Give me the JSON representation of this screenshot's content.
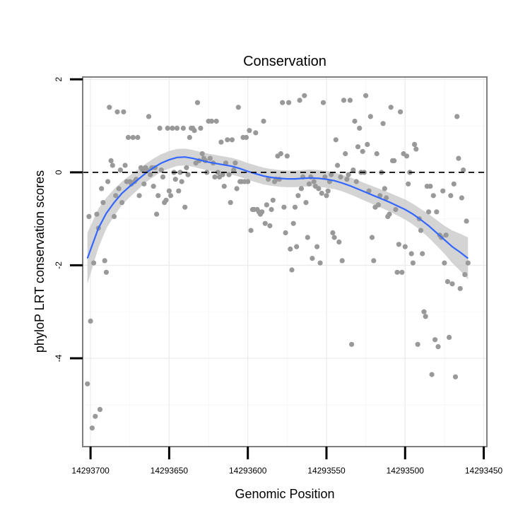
{
  "chart_data": {
    "type": "scatter",
    "title": "Conservation",
    "xlabel": "Genomic Position",
    "ylabel": "phyloP LRT conservation scores",
    "x_reversed": true,
    "xlim": [
      14293705,
      14293448
    ],
    "ylim": [
      -5.9,
      2.05
    ],
    "x_ticks": [
      14293700,
      14293650,
      14293600,
      14293550,
      14293500,
      14293450
    ],
    "x_tick_labels": [
      "14293700",
      "14293650",
      "14293600",
      "14293550",
      "14293500",
      "14293450"
    ],
    "y_ticks": [
      2,
      0,
      -2,
      -4
    ],
    "y_tick_labels": [
      "2",
      "0",
      "-2",
      "-4"
    ],
    "reference_line_y": 0,
    "grid": true,
    "colors": {
      "points": "#999999",
      "smooth": "#3366ff",
      "ribbon": "#cccccc",
      "panel_border": "#7f7f7f",
      "reference_line": "#000000"
    },
    "points": [
      [
        14293702,
        -4.55
      ],
      [
        14293701,
        -0.95
      ],
      [
        14293700,
        -3.2
      ],
      [
        14293699,
        -5.5
      ],
      [
        14293698,
        -1.95
      ],
      [
        14293697,
        -5.25
      ],
      [
        14293696,
        -0.9
      ],
      [
        14293695,
        -1.2
      ],
      [
        14293694,
        -5.1
      ],
      [
        14293693,
        -0.35
      ],
      [
        14293692,
        -0.65
      ],
      [
        14293691,
        -1.9
      ],
      [
        14293690,
        -2.15
      ],
      [
        14293689,
        -0.2
      ],
      [
        14293688,
        1.4
      ],
      [
        14293687,
        0.25
      ],
      [
        14293686,
        0.15
      ],
      [
        14293685,
        -0.95
      ],
      [
        14293684,
        -0.5
      ],
      [
        14293683,
        1.3
      ],
      [
        14293682,
        -0.35
      ],
      [
        14293681,
        0.05
      ],
      [
        14293680,
        -0.65
      ],
      [
        14293679,
        1.3
      ],
      [
        14293678,
        0.15
      ],
      [
        14293677,
        -0.2
      ],
      [
        14293676,
        0.75
      ],
      [
        14293675,
        -0.2
      ],
      [
        14293674,
        -0.25
      ],
      [
        14293673,
        0.75
      ],
      [
        14293672,
        -0.2
      ],
      [
        14293671,
        -0.15
      ],
      [
        14293670,
        0.75
      ],
      [
        14293669,
        -0.5
      ],
      [
        14293668,
        0.1
      ],
      [
        14293667,
        0.05
      ],
      [
        14293666,
        -0.25
      ],
      [
        14293665,
        0.1
      ],
      [
        14293664,
        0.05
      ],
      [
        14293663,
        1.2
      ],
      [
        14293662,
        -0.05
      ],
      [
        14293661,
        0.1
      ],
      [
        14293660,
        -0.3
      ],
      [
        14293659,
        0.1
      ],
      [
        14293658,
        -0.9
      ],
      [
        14293657,
        -0.5
      ],
      [
        14293656,
        0.95
      ],
      [
        14293655,
        0.05
      ],
      [
        14293654,
        -0.1
      ],
      [
        14293653,
        -0.65
      ],
      [
        14293652,
        -0.6
      ],
      [
        14293651,
        0.95
      ],
      [
        14293650,
        -0.4
      ],
      [
        14293649,
        -0.5
      ],
      [
        14293648,
        0.95
      ],
      [
        14293647,
        0.0
      ],
      [
        14293646,
        -0.15
      ],
      [
        14293645,
        0.95
      ],
      [
        14293644,
        -0.4
      ],
      [
        14293643,
        0.0
      ],
      [
        14293642,
        -0.2
      ],
      [
        14293641,
        0.95
      ],
      [
        14293640,
        -0.75
      ],
      [
        14293639,
        0.1
      ],
      [
        14293638,
        -0.05
      ],
      [
        14293637,
        0.75
      ],
      [
        14293636,
        0.95
      ],
      [
        14293635,
        0.95
      ],
      [
        14293634,
        0.9
      ],
      [
        14293633,
        0.2
      ],
      [
        14293632,
        1.5
      ],
      [
        14293631,
        0.25
      ],
      [
        14293630,
        0.95
      ],
      [
        14293629,
        0.4
      ],
      [
        14293628,
        0.3
      ],
      [
        14293627,
        0.25
      ],
      [
        14293626,
        0.0
      ],
      [
        14293625,
        1.1
      ],
      [
        14293624,
        0.3
      ],
      [
        14293623,
        1.1
      ],
      [
        14293622,
        0.2
      ],
      [
        14293621,
        -0.1
      ],
      [
        14293620,
        1.1
      ],
      [
        14293619,
        0.0
      ],
      [
        14293618,
        -0.1
      ],
      [
        14293617,
        0.65
      ],
      [
        14293616,
        -0.05
      ],
      [
        14293615,
        -0.3
      ],
      [
        14293614,
        0.2
      ],
      [
        14293613,
        0.7
      ],
      [
        14293612,
        -0.05
      ],
      [
        14293611,
        -0.65
      ],
      [
        14293610,
        0.7
      ],
      [
        14293609,
        0.05
      ],
      [
        14293608,
        0.2
      ],
      [
        14293607,
        -0.35
      ],
      [
        14293606,
        1.4
      ],
      [
        14293605,
        -0.2
      ],
      [
        14293604,
        -0.2
      ],
      [
        14293603,
        0.75
      ],
      [
        14293602,
        -0.2
      ],
      [
        14293601,
        0.75
      ],
      [
        14293600,
        -0.2
      ],
      [
        14293599,
        0.9
      ],
      [
        14293598,
        -1.25
      ],
      [
        14293597,
        -0.8
      ],
      [
        14293596,
        -0.8
      ],
      [
        14293595,
        0.85
      ],
      [
        14293594,
        -0.8
      ],
      [
        14293593,
        -0.85
      ],
      [
        14293592,
        -0.9
      ],
      [
        14293591,
        -0.85
      ],
      [
        14293590,
        1.1
      ],
      [
        14293589,
        -1.1
      ],
      [
        14293588,
        -0.7
      ],
      [
        14293587,
        -0.15
      ],
      [
        14293586,
        -1.15
      ],
      [
        14293585,
        -0.8
      ],
      [
        14293584,
        -0.6
      ],
      [
        14293583,
        -0.2
      ],
      [
        14293582,
        -0.15
      ],
      [
        14293581,
        0.35
      ],
      [
        14293580,
        -0.15
      ],
      [
        14293579,
        0.4
      ],
      [
        14293578,
        1.5
      ],
      [
        14293577,
        -0.75
      ],
      [
        14293576,
        -1.3
      ],
      [
        14293575,
        0.35
      ],
      [
        14293574,
        1.5
      ],
      [
        14293573,
        -1.65
      ],
      [
        14293572,
        -2.1
      ],
      [
        14293571,
        -1.1
      ],
      [
        14293570,
        -0.75
      ],
      [
        14293569,
        -1.6
      ],
      [
        14293568,
        -0.5
      ],
      [
        14293567,
        1.55
      ],
      [
        14293566,
        -0.35
      ],
      [
        14293565,
        -0.1
      ],
      [
        14293564,
        1.65
      ],
      [
        14293563,
        -0.65
      ],
      [
        14293562,
        -1.4
      ],
      [
        14293561,
        -0.25
      ],
      [
        14293560,
        -0.1
      ],
      [
        14293559,
        -1.85
      ],
      [
        14293558,
        -0.2
      ],
      [
        14293557,
        -0.3
      ],
      [
        14293556,
        -1.6
      ],
      [
        14293555,
        -0.35
      ],
      [
        14293554,
        -1.95
      ],
      [
        14293553,
        -0.45
      ],
      [
        14293552,
        1.5
      ],
      [
        14293551,
        -0.1
      ],
      [
        14293550,
        -0.5
      ],
      [
        14293549,
        -0.4
      ],
      [
        14293548,
        -0.2
      ],
      [
        14293547,
        -0.05
      ],
      [
        14293546,
        -1.3
      ],
      [
        14293545,
        -1.4
      ],
      [
        14293544,
        0.7
      ],
      [
        14293543,
        0.15
      ],
      [
        14293542,
        -1.5
      ],
      [
        14293541,
        -0.1
      ],
      [
        14293540,
        -1.9
      ],
      [
        14293539,
        1.55
      ],
      [
        14293538,
        0.4
      ],
      [
        14293537,
        -0.15
      ],
      [
        14293536,
        -0.05
      ],
      [
        14293535,
        1.55
      ],
      [
        14293534,
        -3.7
      ],
      [
        14293533,
        0.05
      ],
      [
        14293532,
        1.1
      ],
      [
        14293531,
        -0.2
      ],
      [
        14293530,
        0.55
      ],
      [
        14293529,
        0.95
      ],
      [
        14293528,
        0.0
      ],
      [
        14293527,
        0.45
      ],
      [
        14293526,
        0.0
      ],
      [
        14293525,
        1.65
      ],
      [
        14293524,
        0.6
      ],
      [
        14293523,
        -0.4
      ],
      [
        14293522,
        1.2
      ],
      [
        14293521,
        -1.4
      ],
      [
        14293520,
        -1.9
      ],
      [
        14293519,
        -0.75
      ],
      [
        14293518,
        0.4
      ],
      [
        14293517,
        -0.7
      ],
      [
        14293516,
        -0.5
      ],
      [
        14293515,
        0.0
      ],
      [
        14293514,
        1.05
      ],
      [
        14293513,
        -0.35
      ],
      [
        14293512,
        -0.55
      ],
      [
        14293511,
        -0.95
      ],
      [
        14293510,
        -0.9
      ],
      [
        14293509,
        1.4
      ],
      [
        14293508,
        0.25
      ],
      [
        14293507,
        0.25
      ],
      [
        14293506,
        -0.8
      ],
      [
        14293505,
        -2.15
      ],
      [
        14293504,
        -1.55
      ],
      [
        14293503,
        1.3
      ],
      [
        14293502,
        -2.15
      ],
      [
        14293501,
        0.4
      ],
      [
        14293500,
        -1.6
      ],
      [
        14293499,
        0.35
      ],
      [
        14293498,
        -0.25
      ],
      [
        14293497,
        0.0
      ],
      [
        14293496,
        -1.75
      ],
      [
        14293495,
        -1.95
      ],
      [
        14293494,
        0.6
      ],
      [
        14293493,
        0.5
      ],
      [
        14293492,
        -3.7
      ],
      [
        14293491,
        -1.0
      ],
      [
        14293490,
        -1.25
      ],
      [
        14293489,
        -1.75
      ],
      [
        14293488,
        -3.0
      ],
      [
        14293487,
        -3.1
      ],
      [
        14293486,
        -0.3
      ],
      [
        14293485,
        -0.85
      ],
      [
        14293484,
        -0.3
      ],
      [
        14293483,
        -4.35
      ],
      [
        14293482,
        -0.5
      ],
      [
        14293481,
        -3.6
      ],
      [
        14293480,
        -0.85
      ],
      [
        14293479,
        -3.75
      ],
      [
        14293478,
        -1.35
      ],
      [
        14293477,
        -1.4
      ],
      [
        14293476,
        -0.4
      ],
      [
        14293475,
        -1.95
      ],
      [
        14293474,
        -1.35
      ],
      [
        14293473,
        -2.35
      ],
      [
        14293472,
        -3.55
      ],
      [
        14293471,
        -0.5
      ],
      [
        14293470,
        -2.4
      ],
      [
        14293469,
        -0.25
      ],
      [
        14293468,
        -4.4
      ],
      [
        14293467,
        1.2
      ],
      [
        14293466,
        0.3
      ],
      [
        14293465,
        -2.5
      ],
      [
        14293464,
        -0.55
      ],
      [
        14293463,
        0.05
      ],
      [
        14293462,
        -2.2
      ],
      [
        14293461,
        -1.05
      ],
      [
        14293460,
        -1.95
      ]
    ],
    "smooth": [
      [
        14293702,
        -1.85
      ],
      [
        14293695,
        -1.2
      ],
      [
        14293690,
        -0.88
      ],
      [
        14293685,
        -0.65
      ],
      [
        14293680,
        -0.45
      ],
      [
        14293675,
        -0.3
      ],
      [
        14293670,
        -0.16
      ],
      [
        14293665,
        -0.02
      ],
      [
        14293660,
        0.1
      ],
      [
        14293655,
        0.2
      ],
      [
        14293650,
        0.27
      ],
      [
        14293645,
        0.32
      ],
      [
        14293640,
        0.33
      ],
      [
        14293635,
        0.3
      ],
      [
        14293630,
        0.26
      ],
      [
        14293625,
        0.22
      ],
      [
        14293620,
        0.19
      ],
      [
        14293615,
        0.16
      ],
      [
        14293610,
        0.13
      ],
      [
        14293605,
        0.08
      ],
      [
        14293600,
        0.02
      ],
      [
        14293595,
        -0.03
      ],
      [
        14293590,
        -0.08
      ],
      [
        14293585,
        -0.11
      ],
      [
        14293580,
        -0.13
      ],
      [
        14293575,
        -0.14
      ],
      [
        14293570,
        -0.14
      ],
      [
        14293565,
        -0.13
      ],
      [
        14293560,
        -0.12
      ],
      [
        14293555,
        -0.13
      ],
      [
        14293550,
        -0.15
      ],
      [
        14293545,
        -0.18
      ],
      [
        14293540,
        -0.23
      ],
      [
        14293535,
        -0.29
      ],
      [
        14293530,
        -0.36
      ],
      [
        14293525,
        -0.43
      ],
      [
        14293520,
        -0.5
      ],
      [
        14293515,
        -0.57
      ],
      [
        14293510,
        -0.64
      ],
      [
        14293505,
        -0.72
      ],
      [
        14293500,
        -0.8
      ],
      [
        14293495,
        -0.9
      ],
      [
        14293490,
        -1.02
      ],
      [
        14293485,
        -1.15
      ],
      [
        14293480,
        -1.3
      ],
      [
        14293475,
        -1.45
      ],
      [
        14293470,
        -1.6
      ],
      [
        14293465,
        -1.72
      ],
      [
        14293460,
        -1.85
      ]
    ],
    "ribbon_halfwidth": [
      [
        14293702,
        0.55
      ],
      [
        14293690,
        0.33
      ],
      [
        14293680,
        0.25
      ],
      [
        14293665,
        0.2
      ],
      [
        14293640,
        0.18
      ],
      [
        14293600,
        0.18
      ],
      [
        14293570,
        0.18
      ],
      [
        14293540,
        0.18
      ],
      [
        14293510,
        0.2
      ],
      [
        14293490,
        0.23
      ],
      [
        14293475,
        0.3
      ],
      [
        14293460,
        0.45
      ]
    ]
  }
}
